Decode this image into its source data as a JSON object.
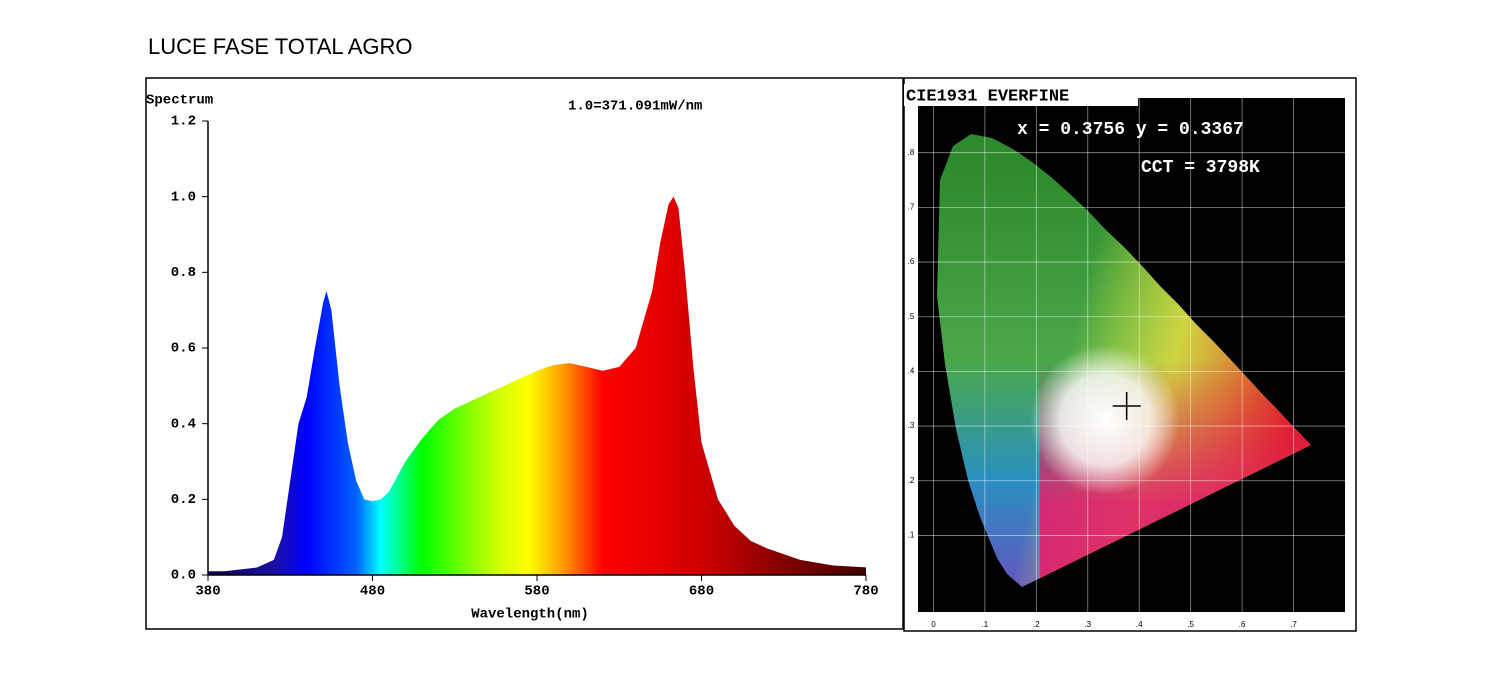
{
  "title": "LUCE FASE TOTAL AGRO",
  "chart_data": [
    {
      "type": "area",
      "y_label": "Spectrum",
      "annotation": "1.0=371.091mW/nm",
      "x_label": "Wavelength(nm)",
      "x": [
        380,
        390,
        400,
        410,
        420,
        425,
        430,
        435,
        440,
        445,
        450,
        452,
        455,
        460,
        465,
        470,
        475,
        480,
        485,
        490,
        500,
        510,
        520,
        530,
        540,
        550,
        560,
        570,
        580,
        590,
        600,
        610,
        620,
        630,
        640,
        650,
        655,
        660,
        663,
        666,
        670,
        675,
        680,
        690,
        700,
        710,
        720,
        740,
        760,
        780
      ],
      "values": [
        0.01,
        0.01,
        0.015,
        0.02,
        0.04,
        0.1,
        0.25,
        0.4,
        0.47,
        0.6,
        0.72,
        0.75,
        0.7,
        0.5,
        0.35,
        0.25,
        0.2,
        0.195,
        0.2,
        0.22,
        0.3,
        0.36,
        0.41,
        0.44,
        0.46,
        0.48,
        0.5,
        0.52,
        0.54,
        0.555,
        0.56,
        0.55,
        0.54,
        0.55,
        0.6,
        0.75,
        0.88,
        0.98,
        1.0,
        0.97,
        0.8,
        0.55,
        0.35,
        0.2,
        0.13,
        0.09,
        0.07,
        0.04,
        0.025,
        0.02
      ],
      "xlim": [
        380,
        780
      ],
      "ylim": [
        0,
        1.2
      ],
      "xticks": [
        380,
        480,
        580,
        680,
        780
      ],
      "yticks": [
        {
          "value": 0,
          "label": "0.0"
        },
        0.2,
        0.4,
        0.6,
        0.8,
        {
          "value": 1,
          "label": "1.0"
        },
        1.2
      ],
      "gradient": [
        {
          "x": 380,
          "color": "#10004a"
        },
        {
          "x": 420,
          "color": "#1a10a0"
        },
        {
          "x": 440,
          "color": "#0000ff"
        },
        {
          "x": 470,
          "color": "#0060ff"
        },
        {
          "x": 485,
          "color": "#00ffff"
        },
        {
          "x": 510,
          "color": "#00ff00"
        },
        {
          "x": 555,
          "color": "#ccff00"
        },
        {
          "x": 575,
          "color": "#ffff00"
        },
        {
          "x": 595,
          "color": "#ffa000"
        },
        {
          "x": 620,
          "color": "#ff0000"
        },
        {
          "x": 680,
          "color": "#d00000"
        },
        {
          "x": 720,
          "color": "#900000"
        },
        {
          "x": 780,
          "color": "#400000"
        }
      ]
    },
    {
      "type": "scatter",
      "title": "CIE1931 EVERFINE",
      "annotations": [
        "x = 0.3756 y = 0.3367",
        "CCT = 3798K"
      ],
      "x": [
        0.3756
      ],
      "values": [
        0.3367
      ],
      "color": "#000000",
      "grid": true,
      "xlim": [
        -0.03,
        0.8
      ],
      "ylim": [
        -0.04,
        0.9
      ],
      "xticks": [
        0,
        {
          "value": 0.1,
          "label": ".1"
        },
        {
          "value": 0.2,
          "label": ".2"
        },
        {
          "value": 0.3,
          "label": ".3"
        },
        {
          "value": 0.4,
          "label": ".4"
        },
        {
          "value": 0.5,
          "label": ".5"
        },
        {
          "value": 0.6,
          "label": ".6"
        },
        {
          "value": 0.7,
          "label": ".7"
        }
      ],
      "yticks": [
        {
          "value": 0.1,
          "label": ".1"
        },
        {
          "value": 0.2,
          "label": ".2"
        },
        {
          "value": 0.3,
          "label": ".3"
        },
        {
          "value": 0.4,
          "label": ".4"
        },
        {
          "value": 0.5,
          "label": ".5"
        },
        {
          "value": 0.6,
          "label": ".6"
        },
        {
          "value": 0.7,
          "label": ".7"
        },
        {
          "value": 0.8,
          "label": ".8"
        }
      ]
    }
  ]
}
